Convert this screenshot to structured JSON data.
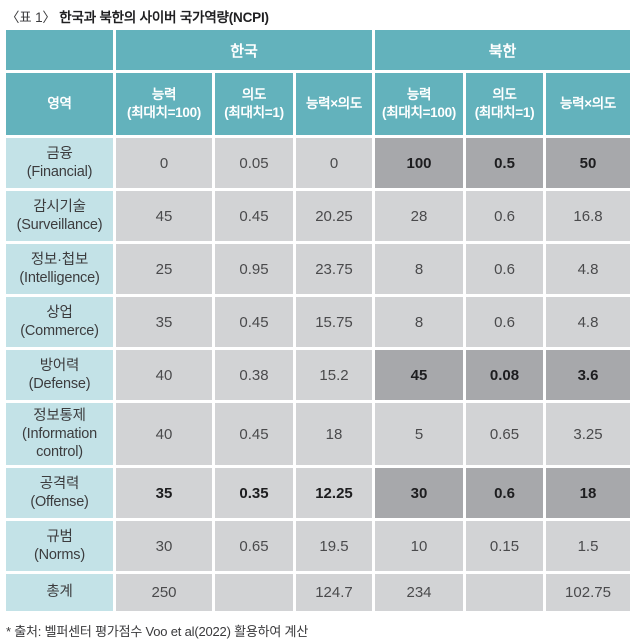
{
  "title": {
    "prefix": "〈표 1〉",
    "main": "한국과 북한의 사이버 국가역량(NCPI)"
  },
  "colors": {
    "header_teal": "#63b2bc",
    "label_cyan": "#c3e2e7",
    "cell_gray": "#d2d3d5",
    "highlight_gray": "#a7a8ab",
    "border_white": "#ffffff"
  },
  "table": {
    "header": {
      "domain": "영역",
      "groups": [
        {
          "label": "한국",
          "cols": [
            "능력\n(최대치=100)",
            "의도\n(최대치=1)",
            "능력×의도"
          ]
        },
        {
          "label": "북한",
          "cols": [
            "능력\n(최대치=100)",
            "의도\n(최대치=1)",
            "능력×의도"
          ]
        }
      ]
    },
    "rows": [
      {
        "label": "금융\n(Financial)",
        "size": "std",
        "cells": [
          {
            "v": "0"
          },
          {
            "v": "0.05"
          },
          {
            "v": "0"
          },
          {
            "v": "100",
            "hl": true
          },
          {
            "v": "0.5",
            "hl": true
          },
          {
            "v": "50",
            "hl": true
          }
        ]
      },
      {
        "label": "감시기술\n(Surveillance)",
        "size": "std",
        "cells": [
          {
            "v": "45"
          },
          {
            "v": "0.45"
          },
          {
            "v": "20.25"
          },
          {
            "v": "28"
          },
          {
            "v": "0.6"
          },
          {
            "v": "16.8"
          }
        ]
      },
      {
        "label": "정보·첩보\n(Intelligence)",
        "size": "std",
        "cells": [
          {
            "v": "25"
          },
          {
            "v": "0.95"
          },
          {
            "v": "23.75"
          },
          {
            "v": "8"
          },
          {
            "v": "0.6"
          },
          {
            "v": "4.8"
          }
        ]
      },
      {
        "label": "상업\n(Commerce)",
        "size": "std",
        "cells": [
          {
            "v": "35"
          },
          {
            "v": "0.45"
          },
          {
            "v": "15.75"
          },
          {
            "v": "8"
          },
          {
            "v": "0.6"
          },
          {
            "v": "4.8"
          }
        ]
      },
      {
        "label": "방어력\n(Defense)",
        "size": "std",
        "cells": [
          {
            "v": "40"
          },
          {
            "v": "0.38"
          },
          {
            "v": "15.2"
          },
          {
            "v": "45",
            "hl": true
          },
          {
            "v": "0.08",
            "hl": true
          },
          {
            "v": "3.6",
            "hl": true
          }
        ]
      },
      {
        "label": "정보통제\n(Information control)",
        "size": "tall",
        "cells": [
          {
            "v": "40"
          },
          {
            "v": "0.45"
          },
          {
            "v": "18"
          },
          {
            "v": "5"
          },
          {
            "v": "0.65"
          },
          {
            "v": "3.25"
          }
        ]
      },
      {
        "label": "공격력\n(Offense)",
        "size": "std",
        "cells": [
          {
            "v": "35",
            "b": true
          },
          {
            "v": "0.35",
            "b": true
          },
          {
            "v": "12.25",
            "b": true
          },
          {
            "v": "30",
            "hl": true
          },
          {
            "v": "0.6",
            "hl": true
          },
          {
            "v": "18",
            "hl": true
          }
        ]
      },
      {
        "label": "규범\n(Norms)",
        "size": "std",
        "cells": [
          {
            "v": "30"
          },
          {
            "v": "0.65"
          },
          {
            "v": "19.5"
          },
          {
            "v": "10"
          },
          {
            "v": "0.15"
          },
          {
            "v": "1.5"
          }
        ]
      },
      {
        "label": "총계",
        "size": "total",
        "cells": [
          {
            "v": "250"
          },
          {
            "v": ""
          },
          {
            "v": "124.7"
          },
          {
            "v": "234"
          },
          {
            "v": ""
          },
          {
            "v": "102.75"
          }
        ]
      }
    ]
  },
  "footnote": "* 출처: 벨퍼센터 평가점수 Voo et al(2022) 활용하여 계산"
}
